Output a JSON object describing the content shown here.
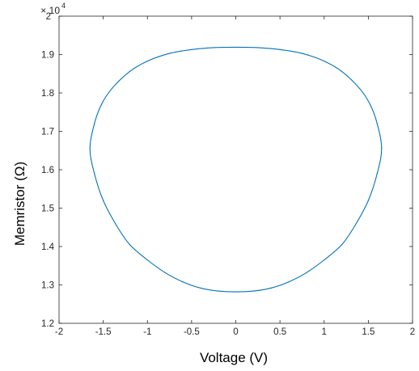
{
  "chart_data": {
    "type": "line",
    "title": "",
    "xlabel": "Voltage (V)",
    "ylabel": "Memristor (Ω)",
    "xlim": [
      -2,
      2
    ],
    "ylim": [
      12000,
      20000
    ],
    "x_ticks": [
      "-2",
      "-1.5",
      "-1",
      "-0.5",
      "0",
      "0.5",
      "1",
      "1.5",
      "2"
    ],
    "y_ticks": [
      "1.2",
      "1.3",
      "1.4",
      "1.5",
      "1.6",
      "1.7",
      "1.8",
      "1.9",
      "2"
    ],
    "y_exponent_base": "× 10",
    "y_exponent_power": "4",
    "grid": false,
    "line_color": "#0072BD",
    "series": [
      {
        "x": [
          -1.65,
          -1.6,
          -1.52,
          -1.4,
          -1.2,
          -1.0,
          -0.75,
          -0.5,
          -0.25,
          0,
          0.25,
          0.5,
          0.75,
          1.0,
          1.2,
          1.4,
          1.52,
          1.6,
          1.65,
          1.6,
          1.5,
          1.35,
          1.2,
          1.0,
          0.8,
          0.6,
          0.4,
          0.2,
          0,
          -0.2,
          -0.4,
          -0.6,
          -0.8,
          -1.0,
          -1.2,
          -1.35,
          -1.5,
          -1.6,
          -1.65
        ],
        "y": [
          16550,
          17200,
          17700,
          18120,
          18560,
          18830,
          19030,
          19130,
          19180,
          19190,
          19180,
          19130,
          19030,
          18830,
          18560,
          18120,
          17700,
          17200,
          16550,
          15900,
          15200,
          14550,
          14050,
          13650,
          13320,
          13080,
          12920,
          12840,
          12820,
          12840,
          12920,
          13080,
          13320,
          13650,
          14050,
          14550,
          15200,
          15900,
          16550
        ]
      }
    ]
  }
}
